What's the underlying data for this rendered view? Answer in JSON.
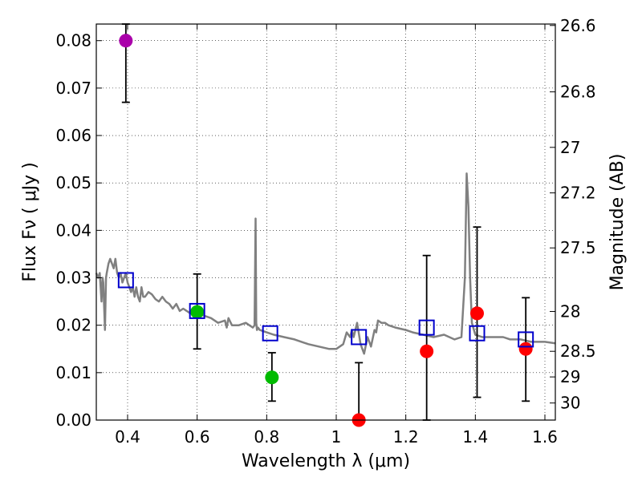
{
  "chart_data": {
    "type": "scatter",
    "xlabel": "Wavelength  λ (μm)",
    "ylabel": "Flux  Fν  ( μJy )",
    "y2label": "Magnitude (AB)",
    "xlim": [
      0.31,
      1.63
    ],
    "ylim": [
      0.0,
      0.0835
    ],
    "x_ticks": [
      "0.4",
      "0.6",
      "0.8",
      "1",
      "1.2",
      "1.4",
      "1.6"
    ],
    "x_tick_values": [
      0.4,
      0.6,
      0.8,
      1.0,
      1.2,
      1.4,
      1.6
    ],
    "y_ticks": [
      "0.00",
      "0.01",
      "0.02",
      "0.03",
      "0.04",
      "0.05",
      "0.06",
      "0.07",
      "0.08"
    ],
    "y_tick_values": [
      0.0,
      0.01,
      0.02,
      0.03,
      0.04,
      0.05,
      0.06,
      0.07,
      0.08
    ],
    "mag_ticks": [
      {
        "label": "26.6",
        "flux": 0.0832
      },
      {
        "label": "26.8",
        "flux": 0.0692
      },
      {
        "label": "27",
        "flux": 0.0575
      },
      {
        "label": "27.2",
        "flux": 0.0479
      },
      {
        "label": "27.5",
        "flux": 0.0363
      },
      {
        "label": "28",
        "flux": 0.0229
      },
      {
        "label": "28.5",
        "flux": 0.0145
      },
      {
        "label": "29",
        "flux": 0.0091
      },
      {
        "label": "30",
        "flux": 0.0036
      }
    ],
    "grid": true,
    "colors": {
      "model": "#808080",
      "model_points": "#0000cc",
      "purple": "#aa00aa",
      "green": "#00bb00",
      "red": "#ff0000",
      "errorbar": "#000000"
    },
    "model_spectrum": {
      "x": [
        0.31,
        0.315,
        0.32,
        0.325,
        0.328,
        0.33,
        0.335,
        0.338,
        0.34,
        0.345,
        0.35,
        0.355,
        0.36,
        0.365,
        0.37,
        0.375,
        0.38,
        0.385,
        0.39,
        0.395,
        0.4,
        0.405,
        0.41,
        0.415,
        0.42,
        0.425,
        0.43,
        0.435,
        0.44,
        0.445,
        0.45,
        0.46,
        0.47,
        0.48,
        0.49,
        0.5,
        0.51,
        0.52,
        0.53,
        0.54,
        0.55,
        0.56,
        0.57,
        0.58,
        0.59,
        0.6,
        0.62,
        0.64,
        0.66,
        0.68,
        0.685,
        0.69,
        0.7,
        0.72,
        0.74,
        0.76,
        0.765,
        0.768,
        0.77,
        0.772,
        0.775,
        0.78,
        0.8,
        0.82,
        0.85,
        0.88,
        0.9,
        0.92,
        0.95,
        0.98,
        1.0,
        1.02,
        1.03,
        1.04,
        1.045,
        1.05,
        1.06,
        1.07,
        1.08,
        1.09,
        1.1,
        1.11,
        1.115,
        1.12,
        1.13,
        1.14,
        1.15,
        1.17,
        1.2,
        1.22,
        1.25,
        1.28,
        1.31,
        1.34,
        1.36,
        1.37,
        1.375,
        1.38,
        1.385,
        1.39,
        1.4,
        1.42,
        1.45,
        1.48,
        1.5,
        1.53,
        1.56,
        1.6,
        1.63
      ],
      "y": [
        0.031,
        0.03,
        0.031,
        0.025,
        0.03,
        0.029,
        0.019,
        0.03,
        0.031,
        0.033,
        0.034,
        0.033,
        0.032,
        0.034,
        0.031,
        0.03,
        0.031,
        0.029,
        0.03,
        0.031,
        0.029,
        0.028,
        0.027,
        0.028,
        0.026,
        0.028,
        0.026,
        0.025,
        0.028,
        0.026,
        0.026,
        0.027,
        0.0265,
        0.0255,
        0.025,
        0.026,
        0.025,
        0.0245,
        0.0235,
        0.0245,
        0.023,
        0.0235,
        0.023,
        0.0225,
        0.0235,
        0.0225,
        0.022,
        0.0215,
        0.0205,
        0.021,
        0.0195,
        0.0215,
        0.02,
        0.02,
        0.0205,
        0.0195,
        0.02,
        0.0425,
        0.0205,
        0.019,
        0.0195,
        0.019,
        0.0185,
        0.018,
        0.0175,
        0.017,
        0.0165,
        0.016,
        0.0155,
        0.015,
        0.015,
        0.016,
        0.0185,
        0.0175,
        0.019,
        0.0175,
        0.0205,
        0.016,
        0.014,
        0.0175,
        0.0155,
        0.019,
        0.0185,
        0.021,
        0.0205,
        0.0205,
        0.02,
        0.0195,
        0.019,
        0.0185,
        0.018,
        0.0175,
        0.018,
        0.017,
        0.0175,
        0.03,
        0.052,
        0.045,
        0.03,
        0.0205,
        0.018,
        0.0175,
        0.0175,
        0.0175,
        0.017,
        0.017,
        0.0165,
        0.0165,
        0.0162
      ]
    },
    "model_points": {
      "x": [
        0.395,
        0.6,
        0.81,
        1.065,
        1.26,
        1.405,
        1.545
      ],
      "y": [
        0.0295,
        0.023,
        0.0183,
        0.0175,
        0.0195,
        0.0183,
        0.017
      ]
    },
    "observed": [
      {
        "x": 0.395,
        "y": 0.08,
        "err_low": 0.067,
        "err_high": 0.0835,
        "color": "purple"
      },
      {
        "x": 0.6,
        "y": 0.0228,
        "err_low": 0.015,
        "err_high": 0.0308,
        "color": "green"
      },
      {
        "x": 0.815,
        "y": 0.009,
        "err_low": 0.004,
        "err_high": 0.0142,
        "color": "green"
      },
      {
        "x": 1.065,
        "y": 0.0,
        "err_low": 0.0,
        "err_high": 0.0121,
        "color": "red"
      },
      {
        "x": 1.26,
        "y": 0.0145,
        "err_low": 0.0,
        "err_high": 0.0347,
        "color": "red"
      },
      {
        "x": 1.405,
        "y": 0.0225,
        "err_low": 0.0048,
        "err_high": 0.0407,
        "color": "red"
      },
      {
        "x": 1.545,
        "y": 0.015,
        "err_low": 0.004,
        "err_high": 0.0258,
        "color": "red"
      }
    ]
  }
}
